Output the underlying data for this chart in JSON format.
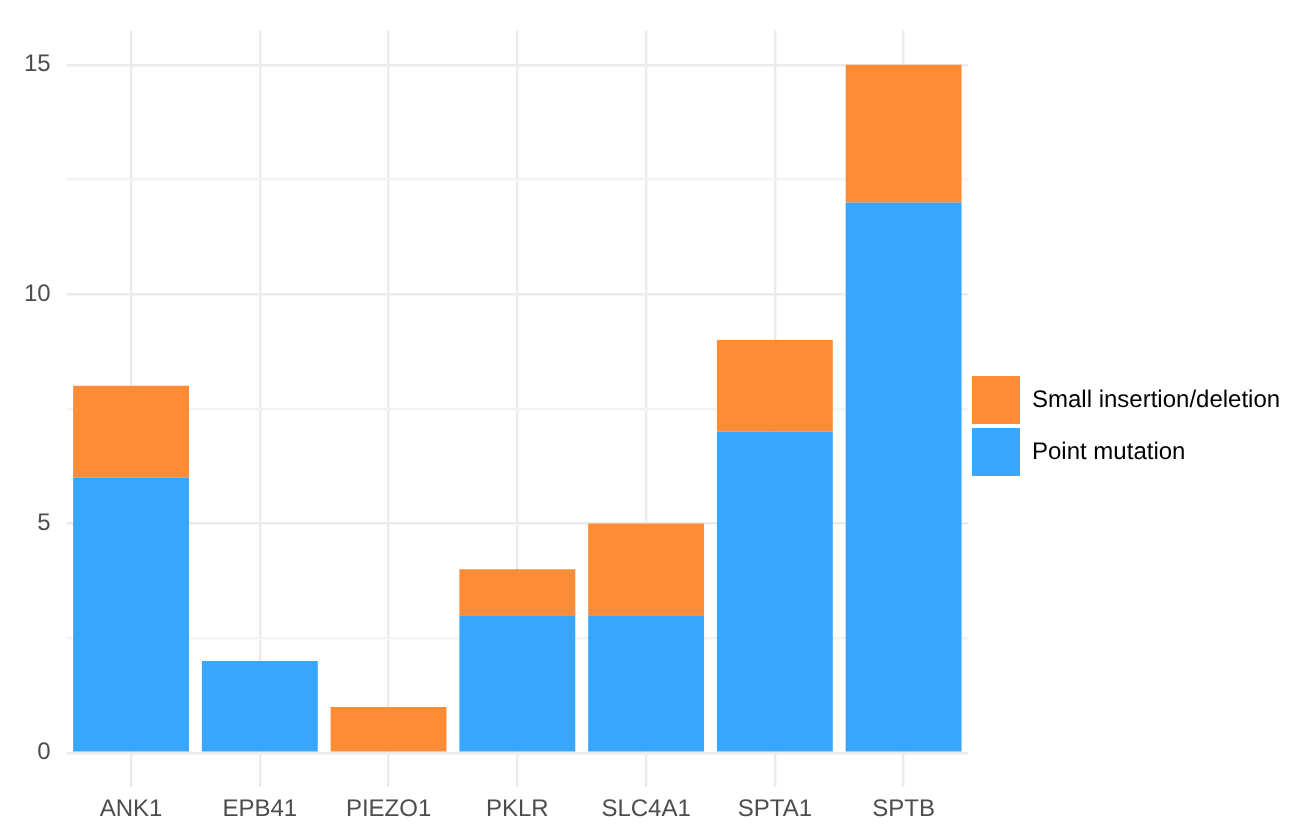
{
  "chart_data": {
    "type": "bar",
    "stacked": true,
    "categories": [
      "ANK1",
      "EPB41",
      "PIEZO1",
      "PKLR",
      "SLC4A1",
      "SPTA1",
      "SPTB"
    ],
    "series": [
      {
        "name": "Point mutation",
        "color": "#38a6fc",
        "values": [
          6,
          2,
          0,
          3,
          3,
          7,
          12
        ]
      },
      {
        "name": "Small insertion/deletion",
        "color": "#fe8c36",
        "values": [
          2,
          0,
          1,
          1,
          2,
          2,
          3
        ]
      }
    ],
    "ylim": [
      -0.75,
      15.75
    ],
    "yticks": [
      0,
      {
        "value": 2.5,
        "label": null
      },
      5,
      {
        "value": 7.5,
        "label": null
      },
      10,
      {
        "value": 12.5,
        "label": null
      },
      15
    ],
    "grid": true,
    "legend": "right"
  }
}
